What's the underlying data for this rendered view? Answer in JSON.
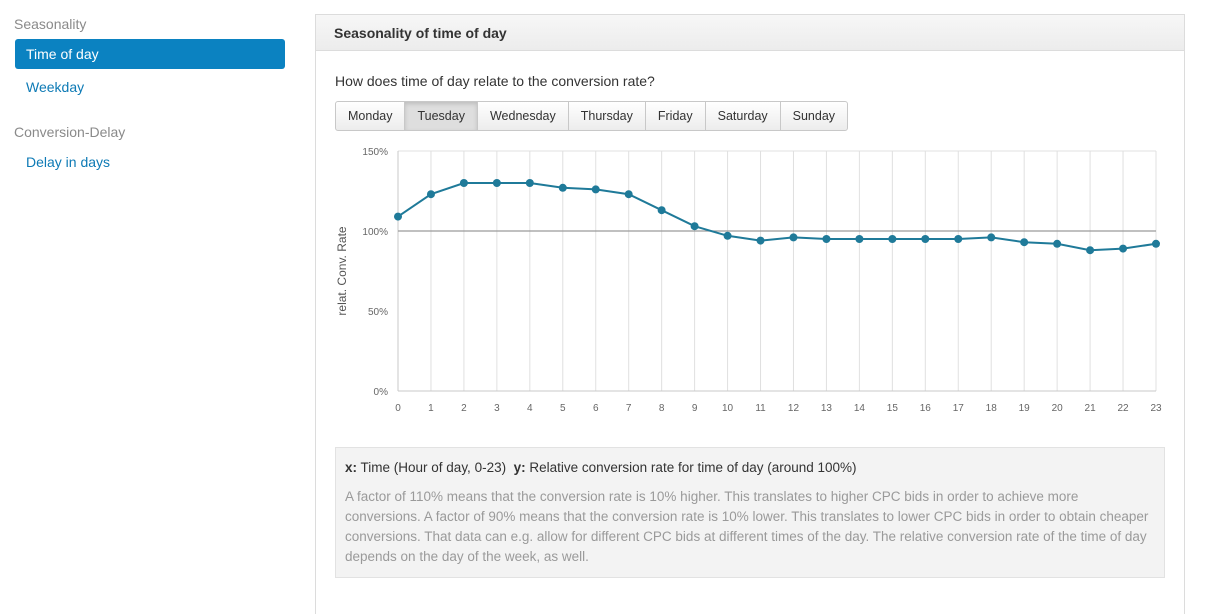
{
  "sidebar": {
    "sections": [
      {
        "header": "Seasonality",
        "items": [
          {
            "label": "Time of day",
            "active": true
          },
          {
            "label": "Weekday",
            "active": false
          }
        ]
      },
      {
        "header": "Conversion-Delay",
        "items": [
          {
            "label": "Delay in days",
            "active": false
          }
        ]
      }
    ]
  },
  "panel": {
    "title": "Seasonality of time of day",
    "question": "How does time of day relate to the conversion rate?",
    "days": [
      "Monday",
      "Tuesday",
      "Wednesday",
      "Thursday",
      "Friday",
      "Saturday",
      "Sunday"
    ],
    "selected_day": "Tuesday",
    "info": {
      "x_key": "x:",
      "x_text": "Time (Hour of day, 0-23)",
      "y_key": "y:",
      "y_text": "Relative conversion rate for time of day (around 100%)",
      "description": "A factor of 110% means that the conversion rate is 10% higher. This translates to higher CPC bids in order to achieve more conversions. A factor of 90% means that the conversion rate is 10% lower. This translates to lower CPC bids in order to obtain cheaper conversions. That data can e.g. allow for different CPC bids at different times of the day. The relative conversion rate of the time of day depends on the day of the week, as well."
    }
  },
  "colors": {
    "accent": "#0b82c1",
    "series": "#1f7a99",
    "reference_line": "#9a9a9a",
    "grid": "#e0e0e0"
  },
  "chart_data": {
    "type": "line",
    "ylabel": "relat. Conv. Rate",
    "xlabel": "",
    "x": [
      0,
      1,
      2,
      3,
      4,
      5,
      6,
      7,
      8,
      9,
      10,
      11,
      12,
      13,
      14,
      15,
      16,
      17,
      18,
      19,
      20,
      21,
      22,
      23
    ],
    "values": [
      109,
      123,
      130,
      130,
      130,
      127,
      126,
      123,
      113,
      103,
      97,
      94,
      96,
      95,
      95,
      95,
      95,
      95,
      96,
      93,
      92,
      88,
      89,
      92
    ],
    "ylim": [
      0,
      150
    ],
    "yticks": [
      "0%",
      "50%",
      "100%",
      "150%"
    ],
    "ytick_values": [
      0,
      50,
      100,
      150
    ],
    "reference_y": 100,
    "grid": true
  }
}
